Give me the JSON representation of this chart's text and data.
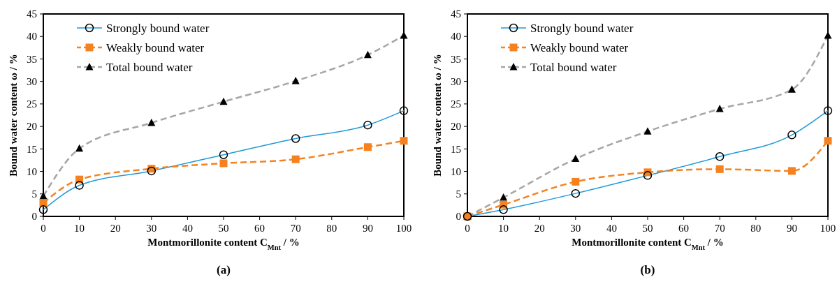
{
  "chart_data": [
    {
      "type": "line",
      "xlabel": "Montmorillonite content C$_{Mnt}$ / %",
      "ylabel": "Bound water content ω / %",
      "annotations": [
        "(a)"
      ],
      "x": [
        0,
        10,
        30,
        50,
        70,
        90,
        100
      ],
      "xlim": [
        0,
        100
      ],
      "xticks": [
        0,
        10,
        20,
        30,
        40,
        50,
        60,
        70,
        80,
        90,
        100
      ],
      "ylim": [
        0,
        45
      ],
      "yticks": [
        0,
        5,
        10,
        15,
        20,
        25,
        30,
        35,
        40,
        45
      ],
      "grid": false,
      "legend": "top left",
      "series": [
        {
          "name": "Strongly bound water",
          "color": "#1f9ad6",
          "marker": "circle",
          "line_style": "solid",
          "values": [
            1.5,
            6.9,
            10.1,
            13.7,
            17.3,
            20.3,
            23.5
          ]
        },
        {
          "name": "Weakly bound water",
          "color": "#f58220",
          "marker": "square",
          "line_style": "dashed",
          "values": [
            3.0,
            8.2,
            10.6,
            11.8,
            12.7,
            15.4,
            16.8
          ]
        },
        {
          "name": "Total bound water",
          "color": "#a6a6a6",
          "marker": "triangle",
          "line_style": "dashed",
          "values": [
            4.5,
            15.1,
            20.8,
            25.5,
            30.1,
            35.9,
            40.2
          ]
        }
      ]
    },
    {
      "type": "line",
      "xlabel": "Montmorillonite content C$_{Mnt}$ / %",
      "ylabel": "Bound water content ω / %",
      "annotations": [
        "(b)"
      ],
      "x": [
        0,
        10,
        30,
        50,
        70,
        90,
        100
      ],
      "xlim": [
        0,
        100
      ],
      "xticks": [
        0,
        10,
        20,
        30,
        40,
        50,
        60,
        70,
        80,
        90,
        100
      ],
      "ylim": [
        0,
        45
      ],
      "yticks": [
        0,
        5,
        10,
        15,
        20,
        25,
        30,
        35,
        40,
        45
      ],
      "grid": false,
      "legend": "top left",
      "series": [
        {
          "name": "Strongly bound water",
          "color": "#1f9ad6",
          "marker": "circle",
          "line_style": "solid",
          "values": [
            0,
            1.5,
            5.1,
            9.1,
            13.3,
            18.1,
            23.5
          ]
        },
        {
          "name": "Weakly bound water",
          "color": "#f58220",
          "marker": "square",
          "line_style": "dashed",
          "values": [
            0,
            2.6,
            7.7,
            9.8,
            10.5,
            10.1,
            16.8
          ]
        },
        {
          "name": "Total bound water",
          "color": "#a6a6a6",
          "marker": "triangle",
          "line_style": "dashed",
          "values": [
            0,
            4.2,
            12.8,
            18.9,
            23.9,
            28.2,
            40.2
          ]
        }
      ]
    }
  ]
}
